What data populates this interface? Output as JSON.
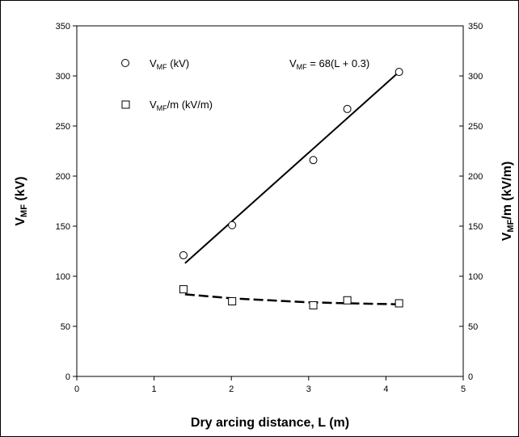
{
  "chart_data": {
    "type": "scatter",
    "xlabel": "Dry arcing distance, L (m)",
    "ylabel_left": {
      "base": "V",
      "sub": "MF",
      "rest": " (kV)"
    },
    "ylabel_right": {
      "base": "V",
      "sub": "MF",
      "rest": "/m (kV/m)"
    },
    "xlim": [
      0,
      5
    ],
    "ylim": [
      0,
      350
    ],
    "x_ticks": [
      0,
      1,
      2,
      3,
      4,
      5
    ],
    "y_ticks": [
      0,
      50,
      100,
      150,
      200,
      250,
      300,
      350
    ],
    "grid": false,
    "legend_position": "top-left",
    "series": [
      {
        "legend": {
          "base": "V",
          "sub": "MF",
          "rest": " (kV)"
        },
        "marker": "circle",
        "x": [
          1.38,
          2.01,
          3.06,
          3.5,
          4.17
        ],
        "y": [
          121,
          151,
          216,
          267,
          304
        ]
      },
      {
        "legend": {
          "base": "V",
          "sub": "MF",
          "rest": "/m (kV/m)"
        },
        "marker": "square",
        "x": [
          1.38,
          2.01,
          3.06,
          3.5,
          4.17
        ],
        "y": [
          87,
          75,
          71,
          76,
          73
        ]
      }
    ],
    "fits": [
      {
        "style": "solid",
        "x": [
          1.4,
          4.17
        ],
        "y": [
          113,
          304
        ]
      },
      {
        "style": "dashed",
        "x": [
          1.4,
          2.0,
          2.5,
          3.0,
          3.5,
          4.17
        ],
        "y": [
          82,
          78,
          76,
          74,
          73,
          72
        ]
      }
    ],
    "annotation": {
      "base": "V",
      "sub": "MF",
      "rest": " = 68(L + 0.3)"
    }
  }
}
